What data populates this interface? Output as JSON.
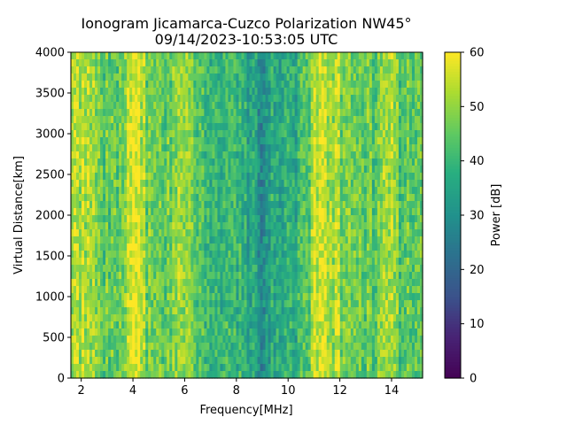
{
  "chart_data": {
    "type": "heatmap",
    "title": "Ionogram Jicamarca-Cuzco Polarization NW45°",
    "subtitle": "09/14/2023-10:53:05 UTC",
    "xlabel": "Frequency[MHz]",
    "ylabel": "Virtual Distance[km]",
    "xlim": [
      1.6,
      15.2
    ],
    "ylim": [
      0,
      4000
    ],
    "x_ticks": [
      2,
      4,
      6,
      8,
      10,
      12,
      14
    ],
    "y_ticks": [
      0,
      500,
      1000,
      1500,
      2000,
      2500,
      3000,
      3500,
      4000
    ],
    "colorbar": {
      "label": "Power [dB]",
      "range": [
        0,
        60
      ],
      "ticks": [
        0,
        10,
        20,
        30,
        40,
        50,
        60
      ],
      "colormap": "viridis"
    },
    "grid": false,
    "power_profile_db": {
      "frequency_mhz": [
        1.6,
        1.9,
        2.2,
        2.5,
        2.8,
        3.1,
        3.4,
        3.7,
        3.9,
        4.1,
        4.3,
        4.5,
        4.8,
        5.1,
        5.4,
        5.7,
        6.0,
        6.3,
        6.6,
        6.9,
        7.2,
        7.5,
        7.8,
        8.1,
        8.4,
        8.7,
        9.0,
        9.3,
        9.6,
        9.9,
        10.2,
        10.5,
        10.8,
        11.0,
        11.2,
        11.4,
        11.6,
        11.9,
        12.2,
        12.5,
        12.8,
        13.1,
        13.4,
        13.7,
        14.0,
        14.3,
        14.6,
        14.9,
        15.2
      ],
      "mean_power_db": [
        48,
        52,
        53,
        50,
        47,
        44,
        46,
        50,
        55,
        57,
        55,
        48,
        44,
        45,
        47,
        49,
        50,
        46,
        44,
        40,
        42,
        40,
        41,
        38,
        37,
        34,
        30,
        34,
        38,
        36,
        38,
        40,
        44,
        55,
        54,
        56,
        48,
        52,
        44,
        47,
        43,
        46,
        44,
        49,
        54,
        45,
        44,
        46,
        44
      ]
    }
  }
}
